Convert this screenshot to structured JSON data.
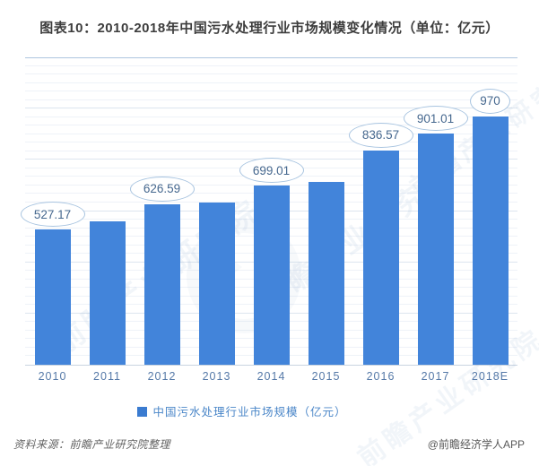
{
  "title": "图表10：2010-2018年中国污水处理行业市场规模变化情况（单位：亿元）",
  "chart_data": {
    "type": "bar",
    "title": "图表10：2010-2018年中国污水处理行业市场规模变化情况（单位：亿元）",
    "categories": [
      "2010",
      "2011",
      "2012",
      "2013",
      "2014",
      "2015",
      "2016",
      "2017",
      "2018E"
    ],
    "values": [
      527.17,
      560,
      626.59,
      635,
      699.01,
      715,
      836.57,
      901.01,
      970
    ],
    "data_labels": [
      "527.17",
      "",
      "626.59",
      "",
      "699.01",
      "",
      "836.57",
      "901.01",
      "970"
    ],
    "xlabel": "",
    "ylabel": "",
    "ylim": [
      0,
      1200
    ],
    "grid": {
      "orientation": "horizontal",
      "minor_step": 33.333,
      "major_step": 200
    },
    "legend_position": "bottom",
    "bar_color": "#4284da"
  },
  "legend": {
    "label": "中国污水处理行业市场规模（亿元）"
  },
  "footer": {
    "source": "资料来源：前瞻产业研究院整理",
    "credit": "@前瞻经济学人APP"
  },
  "watermark": {
    "brand_text": "前瞻产业研究院"
  },
  "colors": {
    "bar": "#4284da",
    "bubble_text": "#45678e",
    "bubble_border": "#a8c4e0",
    "axis_label": "#5579a8",
    "legend_text": "#4a86c8",
    "legend_swatch": "#3a7bd0",
    "title_text": "#3d3d3d",
    "footer_text": "#636363",
    "grid_minor": "#eef2f8",
    "grid_major": "#dde5ef",
    "grid_top_line": "#aec6e0",
    "baseline": "#c9d3e0",
    "watermark": "#6f96c4"
  }
}
